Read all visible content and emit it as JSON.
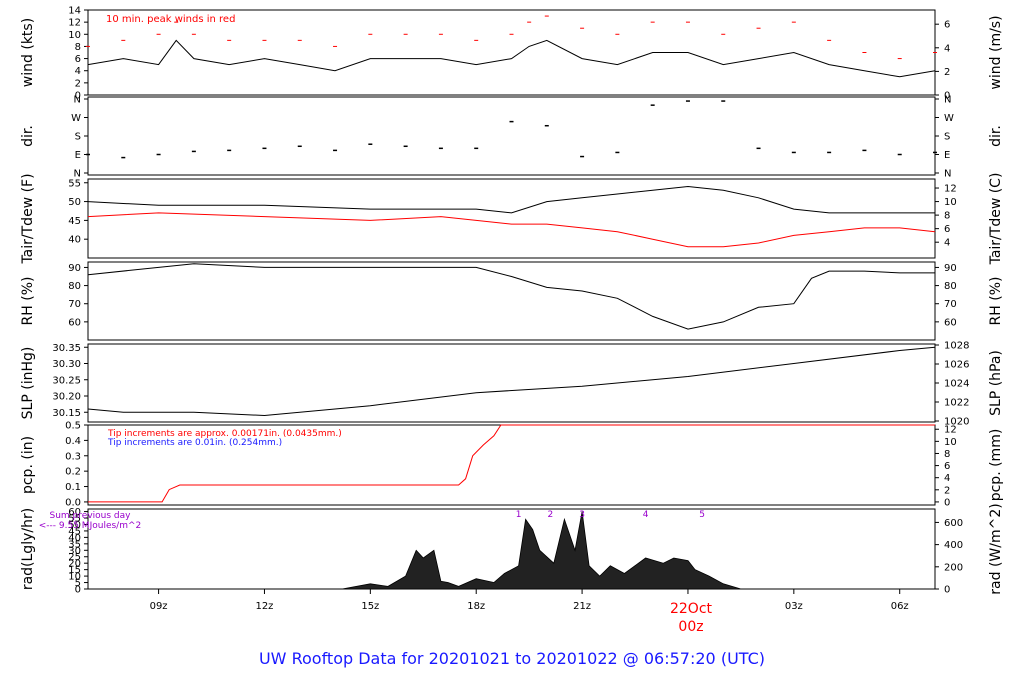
{
  "title": "UW Rooftop Data for 20201021  to  20201022 @ 06:57:20  (UTC)",
  "colors": {
    "black": "#000000",
    "red": "#ff0000",
    "blue": "#1a1aff",
    "purple": "#9900cc"
  },
  "x_axis": {
    "tick_labels": [
      "09z",
      "12z",
      "15z",
      "18z",
      "21z",
      "03z",
      "06z"
    ],
    "tick_hours": [
      9,
      12,
      15,
      18,
      21,
      27,
      30
    ],
    "date_label": "22Oct",
    "date_sub": "00z",
    "date_hour": 24
  },
  "chart_data": [
    {
      "type": "line",
      "name": "wind",
      "ylabel": "wind (kts)",
      "ylabel_right": "wind (m/s)",
      "ylim": [
        0,
        14
      ],
      "y_ticks": [
        0,
        2,
        4,
        6,
        8,
        10,
        12,
        14
      ],
      "right_ticks": [
        0,
        2,
        4,
        6
      ],
      "annotation": "10 min. peak winds in red",
      "x": [
        7,
        8,
        9,
        9.5,
        10,
        11,
        12,
        13,
        14,
        15,
        16,
        17,
        18,
        19,
        19.5,
        20,
        21,
        22,
        23,
        24,
        25,
        26,
        27,
        28,
        29,
        30,
        31
      ],
      "y": [
        5,
        6,
        5,
        9,
        6,
        5,
        6,
        5,
        4,
        6,
        6,
        6,
        5,
        6,
        8,
        9,
        6,
        5,
        7,
        7,
        5,
        6,
        7,
        5,
        4,
        3,
        4
      ],
      "peaks": [
        8,
        9,
        10,
        12,
        10,
        9,
        9,
        9,
        8,
        10,
        10,
        10,
        9,
        10,
        12,
        13,
        11,
        10,
        12,
        12,
        10,
        11,
        12,
        9,
        7,
        6,
        7
      ]
    },
    {
      "type": "scatter",
      "name": "dir",
      "ylabel": "dir.",
      "ylabel_right": "dir.",
      "y_ticks": [
        "N",
        "E",
        "S",
        "W",
        "N"
      ],
      "x": [
        7,
        8,
        9,
        10,
        11,
        12,
        13,
        14,
        15,
        16,
        17,
        18,
        19,
        20,
        21,
        22,
        23,
        24,
        25,
        26,
        27,
        28,
        29,
        30,
        31
      ],
      "y": [
        90,
        75,
        90,
        105,
        110,
        120,
        130,
        110,
        140,
        130,
        120,
        120,
        250,
        230,
        80,
        100,
        330,
        350,
        350,
        120,
        100,
        100,
        110,
        90,
        100
      ]
    },
    {
      "type": "line",
      "name": "temp",
      "ylabel": "Tair/Tdew (F)",
      "ylabel_right": "Tair/Tdew (C)",
      "ylim": [
        35,
        56
      ],
      "y_ticks": [
        40,
        45,
        50,
        55
      ],
      "right_ticks": [
        4,
        6,
        8,
        10,
        12
      ],
      "series": [
        {
          "name": "Tair",
          "x": [
            7,
            9,
            12,
            15,
            17,
            18,
            19,
            20,
            21,
            22,
            23,
            24,
            25,
            26,
            27,
            28,
            29,
            30,
            31
          ],
          "y": [
            50,
            49,
            49,
            48,
            48,
            48,
            47,
            50,
            51,
            52,
            53,
            54,
            53,
            51,
            48,
            47,
            47,
            47,
            47
          ]
        },
        {
          "name": "Tdew",
          "x": [
            7,
            9,
            12,
            15,
            17,
            18,
            19,
            20,
            21,
            22,
            23,
            24,
            25,
            26,
            27,
            28,
            29,
            30,
            31
          ],
          "y": [
            46,
            47,
            46,
            45,
            46,
            45,
            44,
            44,
            43,
            42,
            40,
            38,
            38,
            39,
            41,
            42,
            43,
            43,
            42
          ]
        }
      ]
    },
    {
      "type": "line",
      "name": "rh",
      "ylabel": "RH (%)",
      "ylabel_right": "RH (%)",
      "ylim": [
        50,
        93
      ],
      "y_ticks": [
        60,
        70,
        80,
        90
      ],
      "right_ticks": [
        60,
        70,
        80,
        90
      ],
      "x": [
        7,
        9,
        10,
        12,
        15,
        17,
        18,
        19,
        20,
        21,
        22,
        23,
        24,
        25,
        26,
        27,
        27.5,
        28,
        29,
        30,
        31
      ],
      "y": [
        86,
        90,
        92,
        90,
        90,
        90,
        90,
        85,
        79,
        77,
        73,
        63,
        56,
        60,
        68,
        70,
        84,
        88,
        88,
        87,
        87
      ]
    },
    {
      "type": "line",
      "name": "slp",
      "ylabel": "SLP (inHg)",
      "ylabel_right": "SLP (hPa)",
      "ylim": [
        30.12,
        30.36
      ],
      "y_ticks": [
        30.15,
        30.2,
        30.25,
        30.3,
        30.35
      ],
      "right_ticks": [
        1020,
        1022,
        1024,
        1026,
        1028
      ],
      "right_labels": [
        "1020",
        "1022",
        "1024",
        "1026",
        "1028"
      ],
      "x": [
        7,
        8,
        10,
        12,
        15,
        18,
        21,
        24,
        27,
        30,
        31
      ],
      "y": [
        30.16,
        30.15,
        30.15,
        30.14,
        30.17,
        30.21,
        30.23,
        30.26,
        30.3,
        30.34,
        30.35
      ]
    },
    {
      "type": "line",
      "name": "pcp",
      "ylabel": "pcp. (in)",
      "ylabel_right": "pcp. (mm)",
      "ylim": [
        -0.02,
        0.5
      ],
      "y_ticks": [
        0,
        0.1,
        0.2,
        0.3,
        0.4,
        0.5
      ],
      "right_ticks": [
        0,
        2,
        4,
        6,
        8,
        10,
        12
      ],
      "note_red": "Tip increments are approx. 0.00171in. (0.0435mm.)",
      "note_blue": "Tip increments are 0.01in. (0.254mm.)",
      "x": [
        7,
        9.1,
        9.3,
        9.6,
        10,
        17.5,
        17.7,
        17.9,
        18.2,
        18.5,
        18.7,
        31
      ],
      "y": [
        0,
        0,
        0.08,
        0.11,
        0.11,
        0.11,
        0.15,
        0.3,
        0.37,
        0.43,
        0.5,
        0.5
      ]
    },
    {
      "type": "area",
      "name": "rad",
      "ylabel": "rad(Lgly/hr)",
      "ylabel_right": "rad (W/m^2)",
      "ylim": [
        0,
        60
      ],
      "y_ticks": [
        0,
        5,
        10,
        15,
        20,
        25,
        30,
        35,
        40,
        45,
        50,
        55,
        60
      ],
      "right_ticks": [
        0,
        200,
        400,
        600
      ],
      "sum_label": "Sum previous day",
      "sum_value": "<--- 9.55 MJoules/m^2",
      "markers": [
        "1",
        "2",
        "3",
        "4",
        "5"
      ],
      "marker_hours": [
        19.2,
        20.1,
        21,
        22.8,
        24.4
      ],
      "x": [
        14.2,
        15,
        15.5,
        16,
        16.3,
        16.5,
        16.8,
        17,
        17.2,
        17.5,
        18,
        18.5,
        18.8,
        19.2,
        19.4,
        19.6,
        19.8,
        20.2,
        20.5,
        20.8,
        21.0,
        21.2,
        21.5,
        21.8,
        22.2,
        22.8,
        23.3,
        23.6,
        24.0,
        24.2,
        24.6,
        25,
        25.5
      ],
      "y": [
        0,
        4,
        2,
        10,
        30,
        24,
        30,
        6,
        5,
        2,
        8,
        5,
        12,
        18,
        54,
        46,
        30,
        20,
        54,
        30,
        60,
        18,
        10,
        18,
        12,
        24,
        20,
        24,
        22,
        15,
        10,
        4,
        0
      ]
    }
  ]
}
